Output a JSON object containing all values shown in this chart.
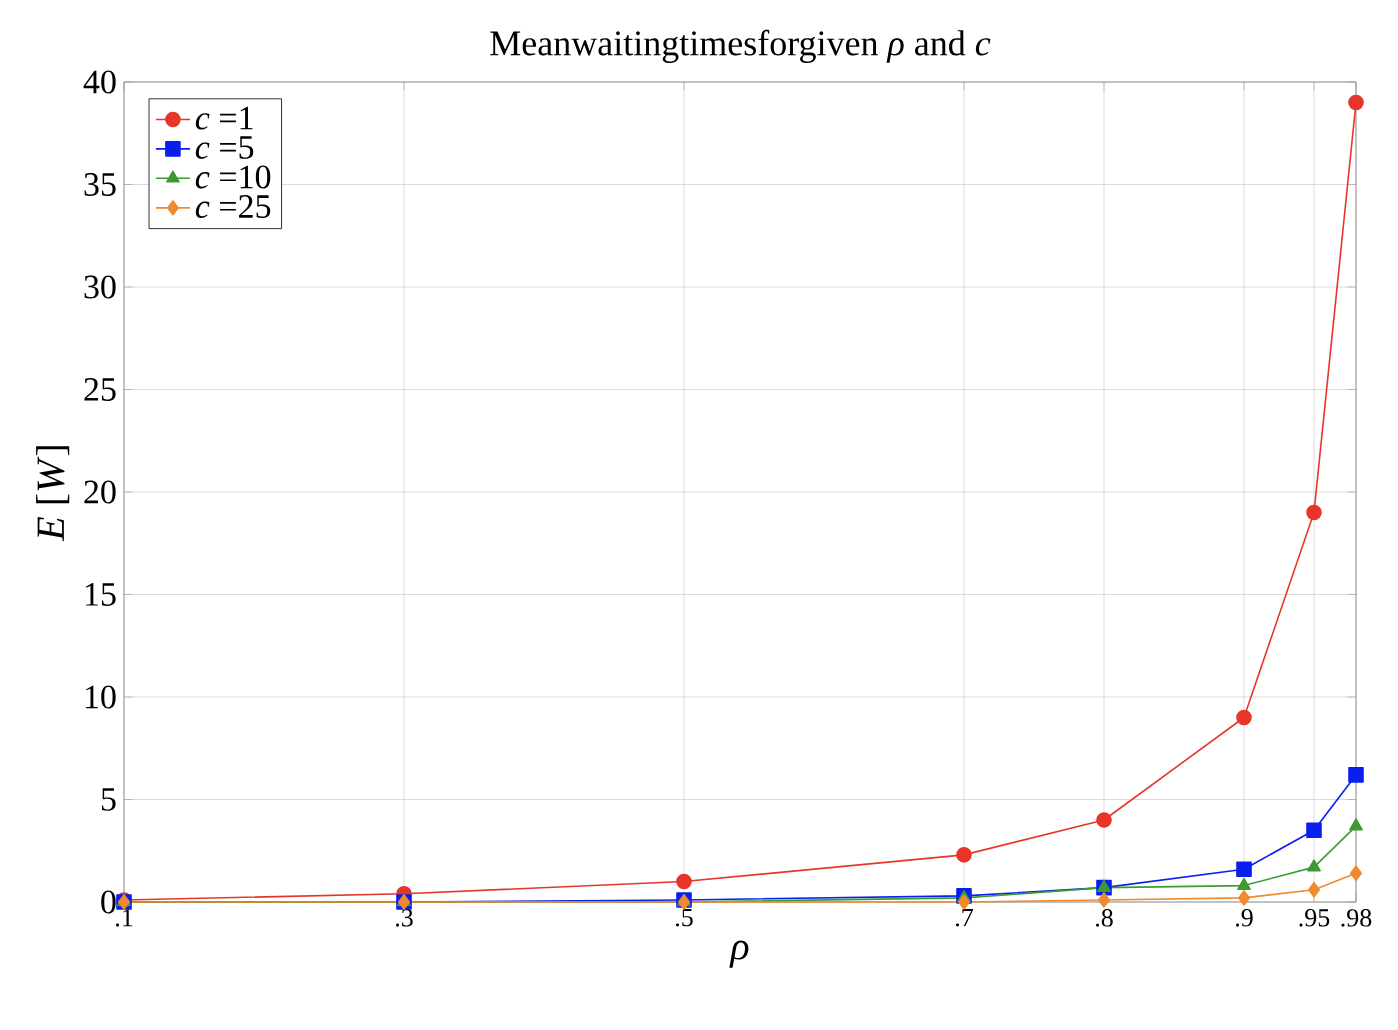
{
  "chart_data": {
    "type": "line",
    "title": "Meanwaitingtimesforgiven *ρ* and *c*",
    "xlabel": "*ρ*",
    "ylabel": "*E* [*W*]",
    "x": [
      0.1,
      0.3,
      0.5,
      0.7,
      0.8,
      0.9,
      0.95,
      0.98
    ],
    "xlim": [
      0.1,
      0.98
    ],
    "xticks": [
      {
        "value": 0.1,
        "label": ".1"
      },
      {
        "value": 0.3,
        "label": ".3"
      },
      {
        "value": 0.5,
        "label": ".5"
      },
      {
        "value": 0.7,
        "label": ".7"
      },
      {
        "value": 0.8,
        "label": ".8"
      },
      {
        "value": 0.9,
        "label": ".9"
      },
      {
        "value": 0.95,
        "label": ".95"
      },
      {
        "value": 0.98,
        "label": ".98"
      }
    ],
    "ylim": [
      0,
      40
    ],
    "yticks": [
      0,
      5,
      10,
      15,
      20,
      25,
      30,
      35,
      40
    ],
    "grid": true,
    "legend": "top left",
    "series": [
      {
        "name": "*c* =1",
        "color": "#e8352a",
        "marker": "circle",
        "values": [
          0.1,
          0.4,
          1.0,
          2.3,
          4.0,
          9.0,
          19.0,
          39.0
        ]
      },
      {
        "name": "*c* =5",
        "color": "#0a1ef0",
        "marker": "square",
        "values": [
          0.0,
          0.0,
          0.1,
          0.3,
          0.7,
          1.6,
          3.5,
          6.2
        ]
      },
      {
        "name": "*c* =10",
        "color": "#3c9a32",
        "marker": "triangle",
        "values": [
          0.0,
          0.0,
          0.0,
          0.2,
          0.7,
          0.8,
          1.7,
          3.7
        ]
      },
      {
        "name": "*c* =25",
        "color": "#f08a30",
        "marker": "diamond",
        "values": [
          0.0,
          0.0,
          0.0,
          0.0,
          0.1,
          0.2,
          0.6,
          1.4
        ]
      }
    ]
  }
}
